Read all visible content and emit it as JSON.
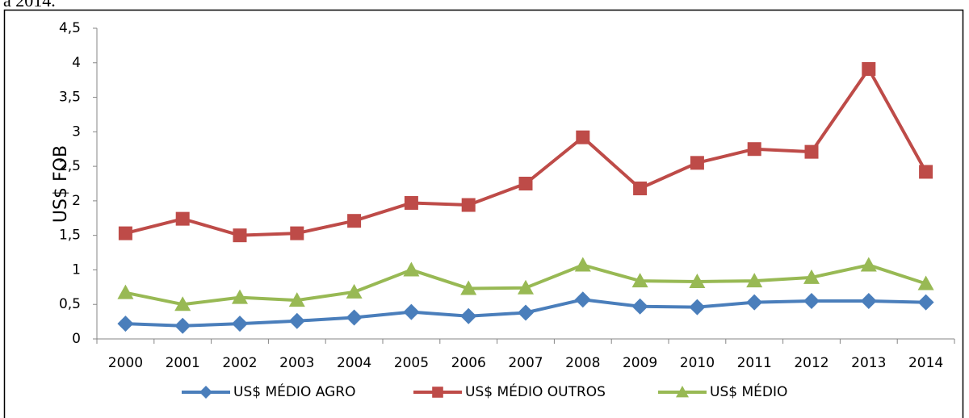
{
  "caption": "a 2014.",
  "chart_data": {
    "type": "line",
    "y_label": "US$ FOB",
    "categories": [
      "2000",
      "2001",
      "2002",
      "2003",
      "2004",
      "2005",
      "2006",
      "2007",
      "2008",
      "2009",
      "2010",
      "2011",
      "2012",
      "2013",
      "2014"
    ],
    "series": [
      {
        "name": "US$ MÉDIO AGRO",
        "color": "#4a7ebb",
        "marker": "diamond",
        "values": [
          0.22,
          0.19,
          0.22,
          0.26,
          0.31,
          0.39,
          0.33,
          0.38,
          0.57,
          0.47,
          0.46,
          0.53,
          0.55,
          0.55,
          0.53
        ]
      },
      {
        "name": "US$ MÉDIO OUTROS",
        "color": "#be4b48",
        "marker": "square",
        "values": [
          1.53,
          1.74,
          1.5,
          1.53,
          1.71,
          1.97,
          1.94,
          2.25,
          2.92,
          2.18,
          2.55,
          2.75,
          2.71,
          3.91,
          2.42
        ]
      },
      {
        "name": "US$ MÉDIO",
        "color": "#98b954",
        "marker": "triangle",
        "values": [
          0.67,
          0.5,
          0.6,
          0.56,
          0.68,
          1.0,
          0.73,
          0.74,
          1.07,
          0.84,
          0.83,
          0.84,
          0.89,
          1.07,
          0.8
        ]
      }
    ],
    "ylim": [
      0,
      4.5
    ],
    "yticks": [
      0,
      {
        "value": 0.5,
        "label": "0,5"
      },
      1,
      {
        "value": 1.5,
        "label": "1,5"
      },
      2,
      {
        "value": 2.5,
        "label": "2,5"
      },
      3,
      {
        "value": 3.5,
        "label": "3,5"
      },
      4,
      {
        "value": 4.5,
        "label": "4,5"
      }
    ],
    "legend": "bottom"
  }
}
